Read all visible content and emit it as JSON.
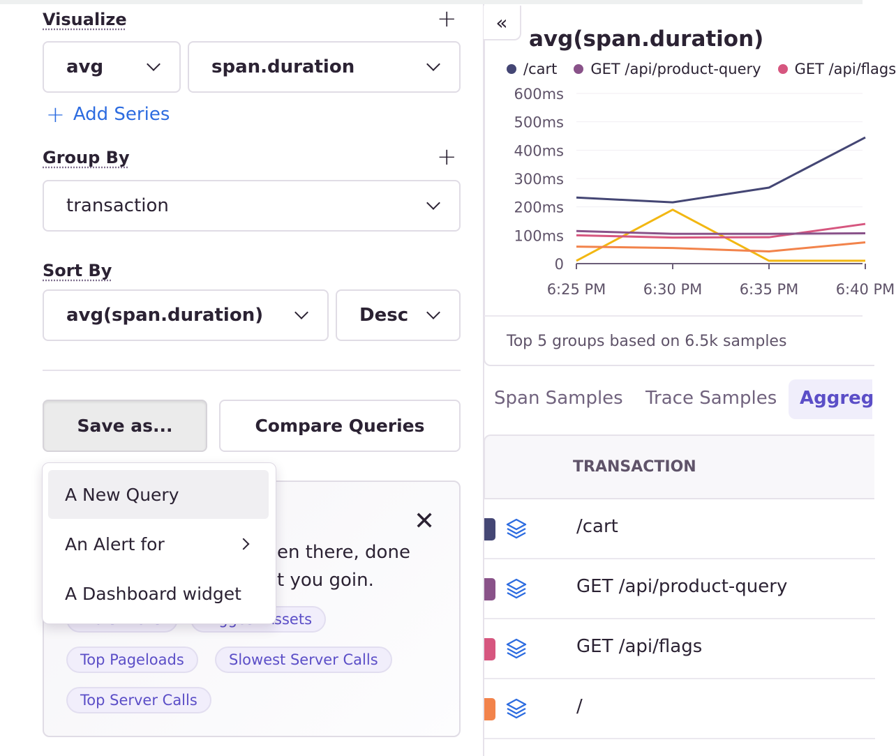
{
  "visualize": {
    "label": "Visualize",
    "function": "avg",
    "field": "span.duration",
    "add_series": "Add Series"
  },
  "group_by": {
    "label": "Group By",
    "value": "transaction"
  },
  "sort_by": {
    "label": "Sort By",
    "field": "avg(span.duration)",
    "order": "Desc"
  },
  "buttons": {
    "save_as": "Save as...",
    "compare": "Compare Queries"
  },
  "save_menu": {
    "items": [
      {
        "label": "A New Query"
      },
      {
        "label": "An Alert for"
      },
      {
        "label": "A Dashboard widget"
      }
    ]
  },
  "suggestions": {
    "text_line1": "en there, done",
    "text_line2": "t you goin.",
    "pills": [
      "Worst LCPs",
      "Biggest Assets",
      "Top Pageloads",
      "Slowest Server Calls",
      "Top Server Calls"
    ]
  },
  "chart_panel": {
    "footer": "Top 5 groups based on 6.5k samples"
  },
  "chart_data": {
    "type": "line",
    "title": "avg(span.duration)",
    "x": [
      "6:25 PM",
      "6:30 PM",
      "6:35 PM",
      "6:40 PM"
    ],
    "y_ticks": [
      "0",
      "100ms",
      "200ms",
      "300ms",
      "400ms",
      "500ms",
      "600ms"
    ],
    "ylim": [
      0,
      600
    ],
    "grid": true,
    "legend_placement": "top",
    "series": [
      {
        "name": "/cart",
        "color": "#444674",
        "values": [
          233,
          216,
          268,
          445
        ]
      },
      {
        "name": "GET /api/product-query",
        "color": "#895289",
        "values": [
          115,
          105,
          105,
          107
        ]
      },
      {
        "name": "GET /api/flags",
        "color": "#d6567f",
        "values": [
          100,
          92,
          93,
          140
        ]
      },
      {
        "color": "#f2834b",
        "values": [
          60,
          55,
          43,
          75
        ]
      },
      {
        "color": "#f2b712",
        "values": [
          10,
          190,
          10,
          10
        ]
      }
    ]
  },
  "results_tabs": [
    "Span Samples",
    "Trace Samples",
    "Aggreg"
  ],
  "table": {
    "header": "TRANSACTION",
    "rows": [
      {
        "name": "/cart",
        "color": "#444674"
      },
      {
        "name": "GET /api/product-query",
        "color": "#895289"
      },
      {
        "name": "GET /api/flags",
        "color": "#d6567f"
      },
      {
        "name": "/",
        "color": "#f2834b"
      }
    ]
  }
}
